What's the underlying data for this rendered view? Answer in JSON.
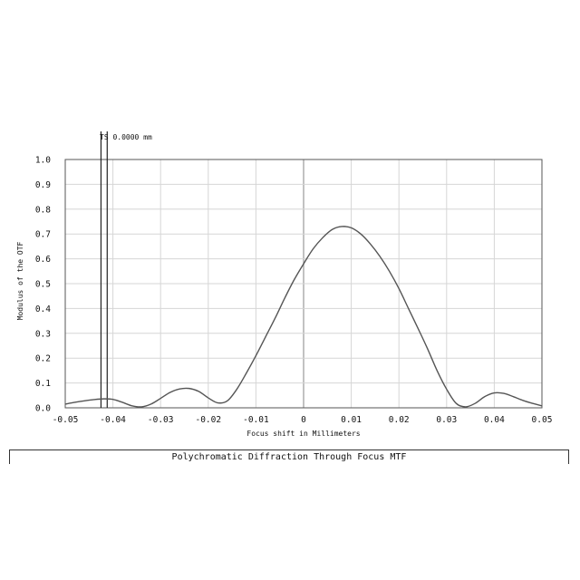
{
  "chart_data": {
    "type": "line",
    "title": "",
    "xlabel": "Focus shift in Millimeters",
    "ylabel": "Modulus of the OTF",
    "xlim": [
      -0.05,
      0.05
    ],
    "ylim": [
      0.0,
      1.0
    ],
    "x_ticks": [
      "-0.05",
      "-0.04",
      "-0.03",
      "-0.02",
      "-0.01",
      "0",
      "0.01",
      "0.02",
      "0.03",
      "0.04",
      "0.05"
    ],
    "y_ticks": [
      "0.0",
      "0.1",
      "0.2",
      "0.3",
      "0.4",
      "0.5",
      "0.6",
      "0.7",
      "0.8",
      "0.9",
      "1.0"
    ],
    "grid": true,
    "marker_label": "TS 0.0000 mm",
    "marker_lines_x": [
      -0.0425,
      -0.0412
    ],
    "series": [
      {
        "x": [
          -0.05,
          -0.048,
          -0.046,
          -0.044,
          -0.042,
          -0.04,
          -0.038,
          -0.036,
          -0.034,
          -0.032,
          -0.03,
          -0.028,
          -0.026,
          -0.024,
          -0.022,
          -0.02,
          -0.018,
          -0.016,
          -0.014,
          -0.012,
          -0.01,
          -0.008,
          -0.006,
          -0.004,
          -0.002,
          0.0,
          0.002,
          0.004,
          0.006,
          0.008,
          0.01,
          0.012,
          0.014,
          0.016,
          0.018,
          0.02,
          0.022,
          0.024,
          0.026,
          0.028,
          0.03,
          0.032,
          0.034,
          0.036,
          0.038,
          0.04,
          0.042,
          0.044,
          0.046,
          0.048,
          0.05
        ],
        "y": [
          0.015,
          0.022,
          0.028,
          0.033,
          0.036,
          0.034,
          0.022,
          0.008,
          0.004,
          0.015,
          0.038,
          0.062,
          0.076,
          0.078,
          0.066,
          0.04,
          0.02,
          0.028,
          0.075,
          0.14,
          0.21,
          0.285,
          0.36,
          0.44,
          0.515,
          0.58,
          0.64,
          0.685,
          0.718,
          0.73,
          0.725,
          0.7,
          0.66,
          0.61,
          0.55,
          0.48,
          0.4,
          0.32,
          0.238,
          0.15,
          0.075,
          0.018,
          0.004,
          0.018,
          0.045,
          0.06,
          0.058,
          0.045,
          0.03,
          0.018,
          0.008
        ]
      }
    ]
  },
  "caption": "Polychromatic Diffraction Through Focus MTF"
}
